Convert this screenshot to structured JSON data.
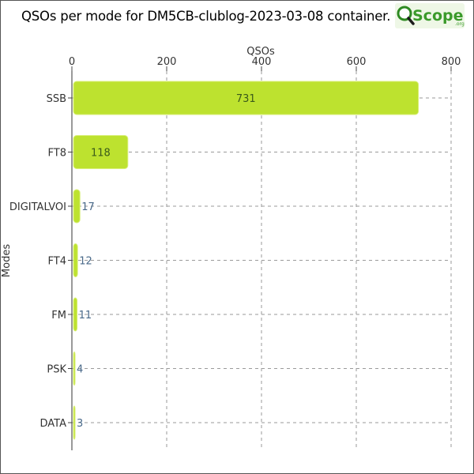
{
  "chart_data": {
    "type": "bar",
    "orientation": "horizontal",
    "title": "QSOs per mode for DM5CB-clublog-2023-03-08 container.",
    "xlabel": "QSOs",
    "ylabel": "Modes",
    "xlim": [
      0,
      800
    ],
    "xticks": [
      0,
      200,
      400,
      600,
      800
    ],
    "x_axis_position": "top",
    "grid": true,
    "categories": [
      "SSB",
      "FT8",
      "DIGITALVOI",
      "FT4",
      "FM",
      "PSK",
      "DATA"
    ],
    "values": [
      731,
      118,
      17,
      12,
      11,
      4,
      3
    ],
    "bar_color": "#bde22f",
    "label_color_inside": "#3a5a1a",
    "label_color_outside": "#4a6a8a"
  },
  "logo": {
    "text": "Scope",
    "suffix": ".org",
    "icon": "magnifier-q-icon",
    "color": "#3a9a2a"
  }
}
